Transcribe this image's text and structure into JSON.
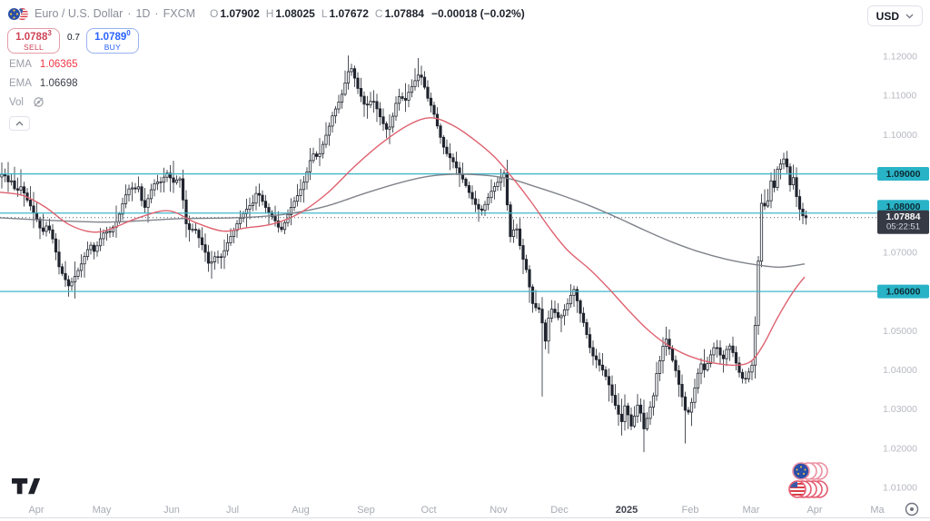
{
  "header": {
    "title": "Euro / U.S. Dollar",
    "dot": "·",
    "timeframe": "1D",
    "exchange": "FXCM",
    "ohlc": {
      "o_label": "O",
      "o": "1.07902",
      "h_label": "H",
      "h": "1.08025",
      "l_label": "L",
      "l": "1.07672",
      "c_label": "C",
      "c": "1.07884",
      "change": "−0.00018 (−0.02%)"
    },
    "currency": "USD"
  },
  "trade_panel": {
    "sell": {
      "price": "1.0788",
      "sup": "3",
      "label": "SELL"
    },
    "spread": "0.7",
    "buy": {
      "price": "1.0789",
      "sup": "0",
      "label": "BUY"
    }
  },
  "indicators": [
    {
      "name": "EMA",
      "value": "1.06365",
      "color": "#f23645"
    },
    {
      "name": "EMA",
      "value": "1.06698",
      "color": "#3a3e49"
    },
    {
      "name": "Vol",
      "value": "",
      "hidden": true
    }
  ],
  "price_axis": {
    "ticks": [
      {
        "label": "1.12000",
        "price": 1.12
      },
      {
        "label": "1.11000",
        "price": 1.11
      },
      {
        "label": "1.10000",
        "price": 1.1
      },
      {
        "label": "1.07000",
        "price": 1.07
      },
      {
        "label": "1.05000",
        "price": 1.05
      },
      {
        "label": "1.04000",
        "price": 1.04
      },
      {
        "label": "1.03000",
        "price": 1.03
      },
      {
        "label": "1.02000",
        "price": 1.02
      },
      {
        "label": "1.01000",
        "price": 1.01
      }
    ],
    "current": {
      "label": "1.07884",
      "countdown": "05:22:51",
      "price": 1.07884
    }
  },
  "time_axis": {
    "ticks": [
      {
        "label": "Apr",
        "x": 40
      },
      {
        "label": "May",
        "x": 112
      },
      {
        "label": "Jun",
        "x": 189
      },
      {
        "label": "Jul",
        "x": 256
      },
      {
        "label": "Aug",
        "x": 331
      },
      {
        "label": "Sep",
        "x": 403
      },
      {
        "label": "Oct",
        "x": 472
      },
      {
        "label": "Nov",
        "x": 549
      },
      {
        "label": "Dec",
        "x": 616
      },
      {
        "label": "2025",
        "x": 690,
        "em": true
      },
      {
        "label": "Feb",
        "x": 760
      },
      {
        "label": "Mar",
        "x": 827
      },
      {
        "label": "Apr",
        "x": 897
      },
      {
        "label": "Ma",
        "x": 966
      }
    ]
  },
  "chart_data": {
    "type": "candlestick",
    "symbol": "EUR/USD",
    "timeframe": "1D",
    "ylim": [
      1.005,
      1.125
    ],
    "grid": false,
    "up_color": "#ffffff",
    "down_color": "#20242e",
    "border_color": "#20242e",
    "levels": [
      {
        "price": 1.09,
        "label": "1.09000",
        "color": "#3fb7c9",
        "label_bg": "#29b3c7",
        "label_dy": 0
      },
      {
        "price": 1.08,
        "label": "1.08000",
        "color": "#3fb7c9",
        "label_bg": "#29b3c7",
        "label_dy": -7
      },
      {
        "price": 1.06,
        "label": "1.06000",
        "color": "#3fb7c9",
        "label_bg": "#29b3c7",
        "label_dy": 0
      }
    ],
    "current_price": 1.07884,
    "ema_fast": {
      "period_value": "1.06365",
      "color": "#df6270",
      "points": [
        [
          0,
          1.0853
        ],
        [
          25,
          1.0845
        ],
        [
          50,
          1.0815
        ],
        [
          75,
          1.0772
        ],
        [
          100,
          1.0752
        ],
        [
          120,
          1.0758
        ],
        [
          150,
          1.0786
        ],
        [
          185,
          1.0806
        ],
        [
          215,
          1.0776
        ],
        [
          245,
          1.0754
        ],
        [
          270,
          1.0762
        ],
        [
          300,
          1.0772
        ],
        [
          330,
          1.08
        ],
        [
          360,
          1.085
        ],
        [
          390,
          1.0918
        ],
        [
          420,
          1.0978
        ],
        [
          450,
          1.1025
        ],
        [
          475,
          1.1043
        ],
        [
          500,
          1.1022
        ],
        [
          525,
          1.0982
        ],
        [
          545,
          1.0942
        ],
        [
          565,
          1.0888
        ],
        [
          585,
          1.0828
        ],
        [
          605,
          1.0762
        ],
        [
          625,
          1.0705
        ],
        [
          650,
          1.0655
        ],
        [
          670,
          1.0608
        ],
        [
          692,
          1.0552
        ],
        [
          712,
          1.0505
        ],
        [
          732,
          1.0468
        ],
        [
          752,
          1.0442
        ],
        [
          772,
          1.0425
        ],
        [
          792,
          1.0415
        ],
        [
          812,
          1.0412
        ],
        [
          827,
          1.0422
        ],
        [
          840,
          1.0462
        ],
        [
          855,
          1.0528
        ],
        [
          868,
          1.058
        ],
        [
          878,
          1.0614
        ],
        [
          886,
          1.0637
        ]
      ]
    },
    "ema_slow": {
      "period_value": "1.06698",
      "color": "#80838c",
      "points": [
        [
          0,
          1.0788
        ],
        [
          40,
          1.0783
        ],
        [
          80,
          1.0779
        ],
        [
          120,
          1.0777
        ],
        [
          160,
          1.0781
        ],
        [
          200,
          1.0786
        ],
        [
          240,
          1.0787
        ],
        [
          280,
          1.079
        ],
        [
          320,
          1.0799
        ],
        [
          360,
          1.0818
        ],
        [
          400,
          1.0849
        ],
        [
          440,
          1.0877
        ],
        [
          470,
          1.0893
        ],
        [
          500,
          1.0899
        ],
        [
          530,
          1.0897
        ],
        [
          560,
          1.0888
        ],
        [
          590,
          1.0867
        ],
        [
          620,
          1.0844
        ],
        [
          650,
          1.0818
        ],
        [
          680,
          1.0788
        ],
        [
          710,
          1.0756
        ],
        [
          740,
          1.0726
        ],
        [
          770,
          1.0701
        ],
        [
          800,
          1.0682
        ],
        [
          830,
          1.0669
        ],
        [
          858,
          1.0662
        ],
        [
          886,
          1.067
        ]
      ]
    },
    "wick_lows": [
      [
        76,
        1.0601
      ],
      [
        598,
        1.0332
      ],
      [
        708,
        1.019
      ],
      [
        756,
        1.0212
      ]
    ],
    "wick_highs": [
      [
        384,
        1.1202
      ],
      [
        462,
        1.1194
      ],
      [
        557,
        1.0936
      ],
      [
        864,
        1.0954
      ]
    ],
    "close_path": [
      [
        0,
        1.0892
      ],
      [
        4,
        1.0905
      ],
      [
        8,
        1.0878
      ],
      [
        12,
        1.0885
      ],
      [
        16,
        1.0862
      ],
      [
        20,
        1.0858
      ],
      [
        24,
        1.087
      ],
      [
        28,
        1.084
      ],
      [
        32,
        1.0826
      ],
      [
        36,
        1.0805
      ],
      [
        40,
        1.0788
      ],
      [
        44,
        1.0762
      ],
      [
        48,
        1.0752
      ],
      [
        52,
        1.0772
      ],
      [
        56,
        1.0748
      ],
      [
        60,
        1.072
      ],
      [
        64,
        1.0668
      ],
      [
        68,
        1.0648
      ],
      [
        72,
        1.063
      ],
      [
        76,
        1.0612
      ],
      [
        80,
        1.0628
      ],
      [
        84,
        1.0645
      ],
      [
        88,
        1.0662
      ],
      [
        92,
        1.0684
      ],
      [
        96,
        1.0705
      ],
      [
        100,
        1.0718
      ],
      [
        104,
        1.07
      ],
      [
        108,
        1.0722
      ],
      [
        112,
        1.0742
      ],
      [
        116,
        1.0756
      ],
      [
        120,
        1.0748
      ],
      [
        124,
        1.0762
      ],
      [
        128,
        1.0778
      ],
      [
        132,
        1.08
      ],
      [
        136,
        1.0832
      ],
      [
        140,
        1.0855
      ],
      [
        144,
        1.0868
      ],
      [
        148,
        1.0858
      ],
      [
        152,
        1.0872
      ],
      [
        156,
        1.0832
      ],
      [
        160,
        1.0812
      ],
      [
        164,
        1.0845
      ],
      [
        168,
        1.0868
      ],
      [
        172,
        1.0882
      ],
      [
        176,
        1.0875
      ],
      [
        180,
        1.089
      ],
      [
        184,
        1.0902
      ],
      [
        188,
        1.0888
      ],
      [
        192,
        1.0875
      ],
      [
        196,
        1.089
      ],
      [
        200,
        1.0885
      ],
      [
        203,
        1.0782
      ],
      [
        206,
        1.0768
      ],
      [
        210,
        1.0752
      ],
      [
        214,
        1.0765
      ],
      [
        218,
        1.0742
      ],
      [
        222,
        1.0722
      ],
      [
        226,
        1.07
      ],
      [
        230,
        1.0668
      ],
      [
        234,
        1.0678
      ],
      [
        238,
        1.0695
      ],
      [
        242,
        1.0682
      ],
      [
        246,
        1.0698
      ],
      [
        250,
        1.0722
      ],
      [
        254,
        1.074
      ],
      [
        258,
        1.0758
      ],
      [
        262,
        1.0778
      ],
      [
        266,
        1.0792
      ],
      [
        270,
        1.0805
      ],
      [
        274,
        1.0818
      ],
      [
        278,
        1.0822
      ],
      [
        282,
        1.085
      ],
      [
        286,
        1.0845
      ],
      [
        290,
        1.0825
      ],
      [
        294,
        1.0808
      ],
      [
        298,
        1.0795
      ],
      [
        302,
        1.0785
      ],
      [
        306,
        1.0765
      ],
      [
        310,
        1.0758
      ],
      [
        314,
        1.0778
      ],
      [
        318,
        1.0802
      ],
      [
        322,
        1.0822
      ],
      [
        326,
        1.0838
      ],
      [
        330,
        1.0855
      ],
      [
        334,
        1.0875
      ],
      [
        338,
        1.0905
      ],
      [
        342,
        1.0938
      ],
      [
        346,
        1.0955
      ],
      [
        350,
        1.0938
      ],
      [
        354,
        1.0965
      ],
      [
        358,
        1.0992
      ],
      [
        362,
        1.1018
      ],
      [
        366,
        1.1048
      ],
      [
        370,
        1.1068
      ],
      [
        374,
        1.1088
      ],
      [
        378,
        1.1112
      ],
      [
        382,
        1.1152
      ],
      [
        386,
        1.1175
      ],
      [
        390,
        1.1148
      ],
      [
        394,
        1.1118
      ],
      [
        398,
        1.1095
      ],
      [
        402,
        1.1072
      ],
      [
        406,
        1.1078
      ],
      [
        410,
        1.1092
      ],
      [
        414,
        1.1072
      ],
      [
        418,
        1.1048
      ],
      [
        422,
        1.1028
      ],
      [
        426,
        1.1012
      ],
      [
        430,
        1.1022
      ],
      [
        434,
        1.1062
      ],
      [
        438,
        1.1098
      ],
      [
        442,
        1.1095
      ],
      [
        446,
        1.1085
      ],
      [
        450,
        1.1108
      ],
      [
        454,
        1.1125
      ],
      [
        458,
        1.1142
      ],
      [
        462,
        1.1158
      ],
      [
        466,
        1.1135
      ],
      [
        470,
        1.1098
      ],
      [
        474,
        1.1078
      ],
      [
        478,
        1.1052
      ],
      [
        482,
        1.1018
      ],
      [
        486,
        1.0985
      ],
      [
        490,
        1.0958
      ],
      [
        494,
        1.0945
      ],
      [
        498,
        1.0935
      ],
      [
        502,
        1.0918
      ],
      [
        506,
        1.0898
      ],
      [
        510,
        1.0885
      ],
      [
        514,
        1.0865
      ],
      [
        518,
        1.0845
      ],
      [
        522,
        1.0828
      ],
      [
        526,
        1.0812
      ],
      [
        530,
        1.0805
      ],
      [
        534,
        1.0822
      ],
      [
        538,
        1.0842
      ],
      [
        542,
        1.086
      ],
      [
        546,
        1.0872
      ],
      [
        550,
        1.0885
      ],
      [
        554,
        1.0898
      ],
      [
        557,
        1.091
      ],
      [
        560,
        1.0732
      ],
      [
        564,
        1.0748
      ],
      [
        568,
        1.0772
      ],
      [
        572,
        1.0722
      ],
      [
        576,
        1.0682
      ],
      [
        580,
        1.0652
      ],
      [
        584,
        1.0598
      ],
      [
        588,
        1.0552
      ],
      [
        592,
        1.0565
      ],
      [
        596,
        1.0538
      ],
      [
        600,
        1.0465
      ],
      [
        604,
        1.0532
      ],
      [
        608,
        1.0558
      ],
      [
        612,
        1.0542
      ],
      [
        616,
        1.0528
      ],
      [
        620,
        1.0548
      ],
      [
        624,
        1.0562
      ],
      [
        628,
        1.0588
      ],
      [
        632,
        1.0605
      ],
      [
        636,
        1.0572
      ],
      [
        640,
        1.0535
      ],
      [
        644,
        1.0512
      ],
      [
        648,
        1.0468
      ],
      [
        652,
        1.0438
      ],
      [
        656,
        1.0428
      ],
      [
        660,
        1.0412
      ],
      [
        664,
        1.0398
      ],
      [
        668,
        1.0378
      ],
      [
        672,
        1.0352
      ],
      [
        676,
        1.0318
      ],
      [
        680,
        1.0295
      ],
      [
        684,
        1.0262
      ],
      [
        688,
        1.0308
      ],
      [
        692,
        1.0282
      ],
      [
        696,
        1.0248
      ],
      [
        700,
        1.0302
      ],
      [
        704,
        1.0318
      ],
      [
        708,
        1.0242
      ],
      [
        712,
        1.0272
      ],
      [
        716,
        1.0305
      ],
      [
        720,
        1.0338
      ],
      [
        724,
        1.0408
      ],
      [
        728,
        1.0432
      ],
      [
        732,
        1.0488
      ],
      [
        736,
        1.0462
      ],
      [
        740,
        1.0428
      ],
      [
        744,
        1.0398
      ],
      [
        748,
        1.0358
      ],
      [
        752,
        1.0322
      ],
      [
        756,
        1.0282
      ],
      [
        760,
        1.0302
      ],
      [
        764,
        1.0342
      ],
      [
        768,
        1.0388
      ],
      [
        772,
        1.0415
      ],
      [
        776,
        1.0398
      ],
      [
        780,
        1.0422
      ],
      [
        784,
        1.0448
      ],
      [
        788,
        1.0465
      ],
      [
        792,
        1.0442
      ],
      [
        796,
        1.0425
      ],
      [
        800,
        1.0452
      ],
      [
        804,
        1.0462
      ],
      [
        808,
        1.0438
      ],
      [
        812,
        1.0405
      ],
      [
        816,
        1.0382
      ],
      [
        820,
        1.0372
      ],
      [
        824,
        1.0392
      ],
      [
        828,
        1.0412
      ],
      [
        831,
        1.0492
      ],
      [
        834,
        1.062
      ],
      [
        837,
        1.0792
      ],
      [
        840,
        1.0858
      ],
      [
        843,
        1.0798
      ],
      [
        846,
        1.0838
      ],
      [
        849,
        1.0882
      ],
      [
        852,
        1.0858
      ],
      [
        855,
        1.0902
      ],
      [
        858,
        1.0932
      ],
      [
        861,
        1.0918
      ],
      [
        864,
        1.0948
      ],
      [
        867,
        1.0912
      ],
      [
        870,
        1.0872
      ],
      [
        873,
        1.0898
      ],
      [
        876,
        1.0852
      ],
      [
        879,
        1.0822
      ],
      [
        882,
        1.0798
      ],
      [
        886,
        1.0788
      ]
    ]
  },
  "footer": {
    "logo": "TradingView"
  }
}
